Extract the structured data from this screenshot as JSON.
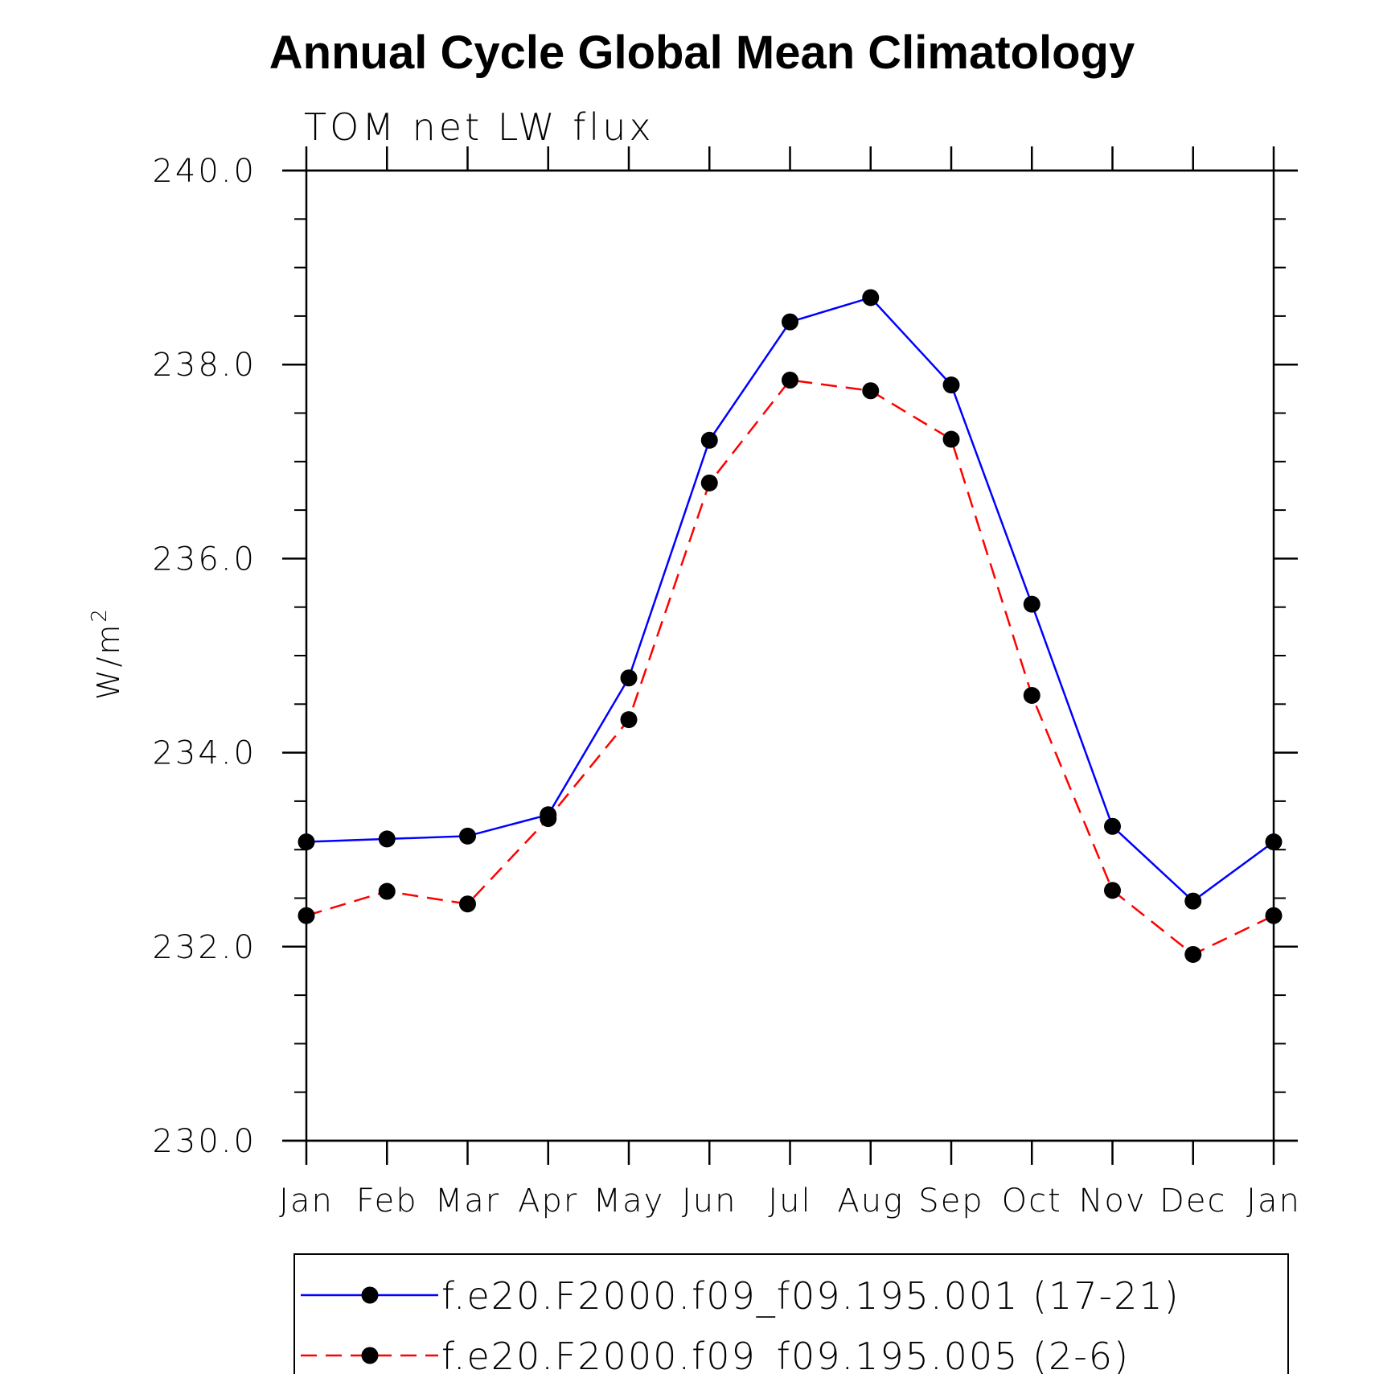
{
  "chart_data": {
    "type": "line",
    "title": "Annual Cycle Global Mean Climatology",
    "subtitle": "TOM net LW flux",
    "ylabel": "W/m",
    "ylabel_superscript": "2",
    "xlabel": "",
    "categories": [
      "Jan",
      "Feb",
      "Mar",
      "Apr",
      "May",
      "Jun",
      "Jul",
      "Aug",
      "Sep",
      "Oct",
      "Nov",
      "Dec",
      "Jan"
    ],
    "ylim": [
      230.0,
      240.0
    ],
    "yticks": [
      "230.0",
      "232.0",
      "234.0",
      "236.0",
      "238.0",
      "240.0"
    ],
    "y_minor_step": 0.5,
    "grid": false,
    "legend_position": "bottom",
    "series": [
      {
        "name": "f.e20.F2000.f09_f09.195.001 (17-21)",
        "color": "#0000ff",
        "line_style": "solid",
        "marker": "filled-circle",
        "values": [
          233.08,
          233.11,
          233.14,
          233.36,
          234.77,
          237.22,
          238.44,
          238.69,
          237.79,
          235.53,
          233.24,
          232.47,
          233.08
        ]
      },
      {
        "name": "f.e20.F2000.f09_f09.195.005 (2-6)",
        "color": "#ff0000",
        "line_style": "dashed",
        "marker": "filled-circle",
        "values": [
          232.32,
          232.57,
          232.44,
          233.32,
          234.34,
          236.78,
          237.84,
          237.73,
          237.23,
          234.59,
          232.58,
          231.92,
          232.32
        ]
      }
    ]
  }
}
